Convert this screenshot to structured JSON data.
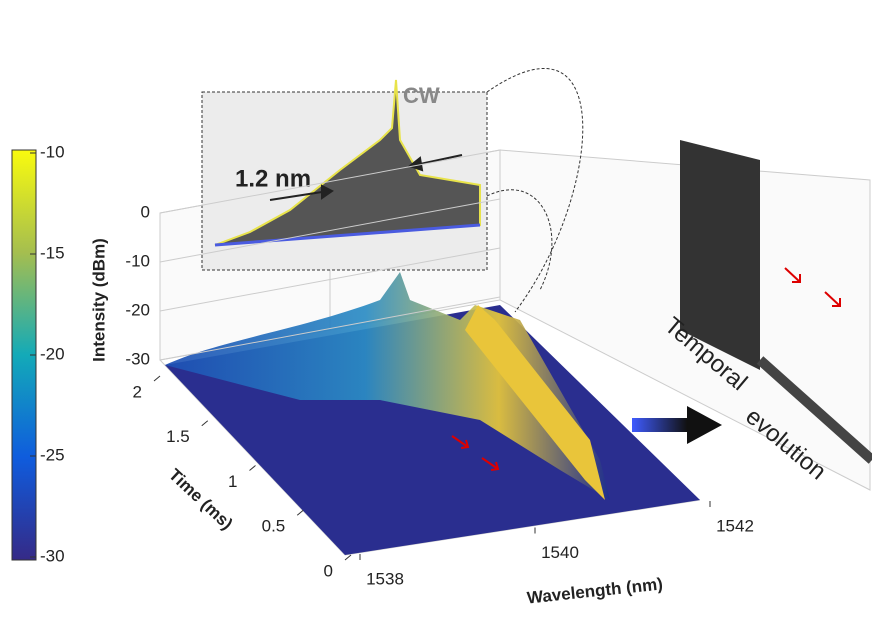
{
  "chart_data": {
    "type": "surface",
    "colorbar": {
      "label": "Intensity (dBm)",
      "lim": [
        -30,
        -10
      ],
      "ticks": [
        -10,
        -15,
        -20,
        -25,
        -30
      ]
    },
    "z_axis": {
      "lim": [
        -30,
        0
      ],
      "ticks": [
        0,
        -10,
        -20,
        -30
      ]
    },
    "time_axis": {
      "label": "Time (ms)",
      "lim": [
        0,
        2
      ],
      "ticks": [
        0,
        0.5,
        1,
        1.5,
        2
      ]
    },
    "wavelength_axis": {
      "label": "Wavelength (nm)",
      "lim": [
        1538,
        1542
      ],
      "ticks": [
        1538,
        1540,
        1542
      ]
    },
    "inset": {
      "peak_label": "CW",
      "width_label": "1.2 nm"
    },
    "annotation": [
      "Temporal",
      "evolution"
    ]
  }
}
